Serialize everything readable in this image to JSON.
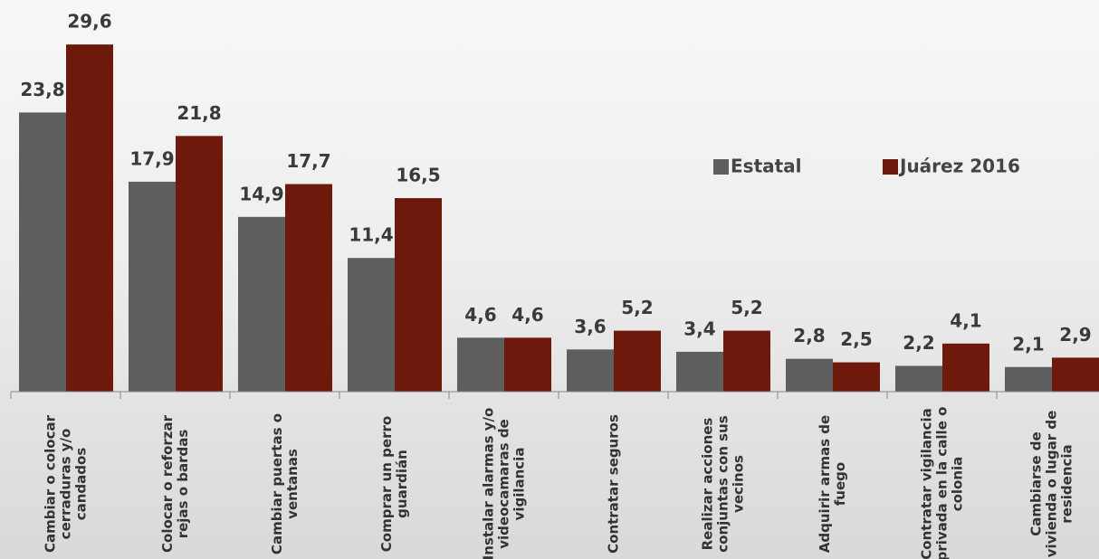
{
  "chart_data": {
    "type": "bar",
    "categories": [
      "Cambiar o colocar cerraduras y/o candados",
      "Colocar o reforzar rejas o bardas",
      "Cambiar puertas o ventanas",
      "Comprar un perro guardián",
      "Instalar alarmas y/o videocamaras de vigilancia",
      "Contratar seguros",
      "Realizar acciones conjuntas con sus vecinos",
      "Adquirir armas de fuego",
      "Contratar vigilancia privada en la calle o colonia",
      "Cambiarse de vivienda o lugar de residencia"
    ],
    "series": [
      {
        "name": "Estatal",
        "color": "#5e5e5e",
        "values": [
          23.8,
          17.9,
          14.9,
          11.4,
          4.6,
          3.6,
          3.4,
          2.8,
          2.2,
          2.1
        ],
        "value_labels": [
          "23,8",
          "17,9",
          "14,9",
          "11,4",
          "4,6",
          "3,6",
          "3,4",
          "2,8",
          "2,2",
          "2,1"
        ]
      },
      {
        "name": "Juárez 2016",
        "color": "#6d1a0d",
        "values": [
          29.6,
          21.8,
          17.7,
          16.5,
          4.6,
          5.2,
          5.2,
          2.5,
          4.1,
          2.9
        ],
        "value_labels": [
          "29,6",
          "21,8",
          "17,7",
          "16,5",
          "4,6",
          "5,2",
          "5,2",
          "2,5",
          "4,1",
          "2,9"
        ]
      }
    ],
    "ylim": [
      0,
      30
    ],
    "legend": "right"
  }
}
